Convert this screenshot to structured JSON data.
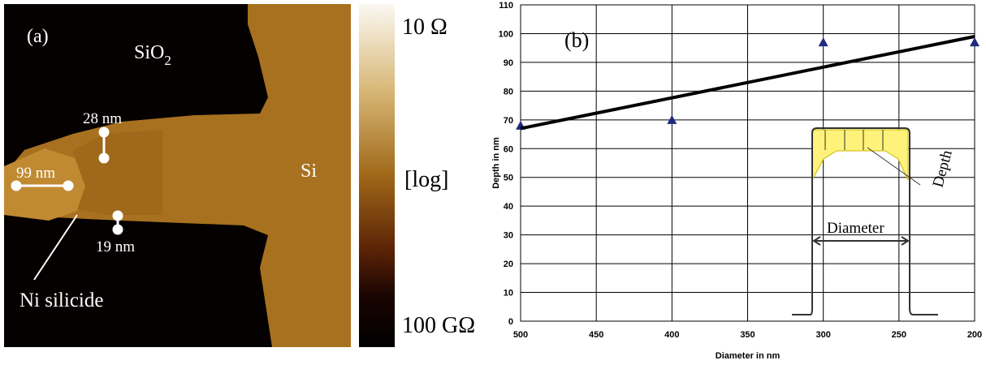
{
  "panel_a": {
    "label": "(a)",
    "oxide": {
      "text": "SiO",
      "subscript": "2"
    },
    "silicon": "Si",
    "width_top": "28 nm",
    "length": "99 nm",
    "width_bottom": "19 nm",
    "silicide": "Ni silicide",
    "colorbar_top": "10 Ω",
    "colorbar_mid": "[log]",
    "colorbar_bottom": "100 GΩ"
  },
  "chart_data": {
    "type": "scatter",
    "label": "(b)",
    "x_label": "Diameter in nm",
    "y_label": "Depth in nm",
    "xlim": [
      500,
      200
    ],
    "xticks": [
      500,
      450,
      400,
      350,
      300,
      250,
      200
    ],
    "ylim": [
      0,
      110
    ],
    "yticks": [
      0,
      10,
      20,
      30,
      40,
      50,
      60,
      70,
      80,
      90,
      100,
      110
    ],
    "grid": true,
    "series": [
      {
        "style": "markers",
        "color": "#1f2a80",
        "x": [
          500,
          400,
          300,
          200
        ],
        "values": [
          68,
          70,
          97,
          97
        ]
      },
      {
        "style": "line",
        "color": "#000000",
        "x": [
          500,
          200
        ],
        "values": [
          67,
          99
        ]
      }
    ],
    "inset": {
      "depth": "Depth",
      "diameter": "Diameter"
    }
  }
}
